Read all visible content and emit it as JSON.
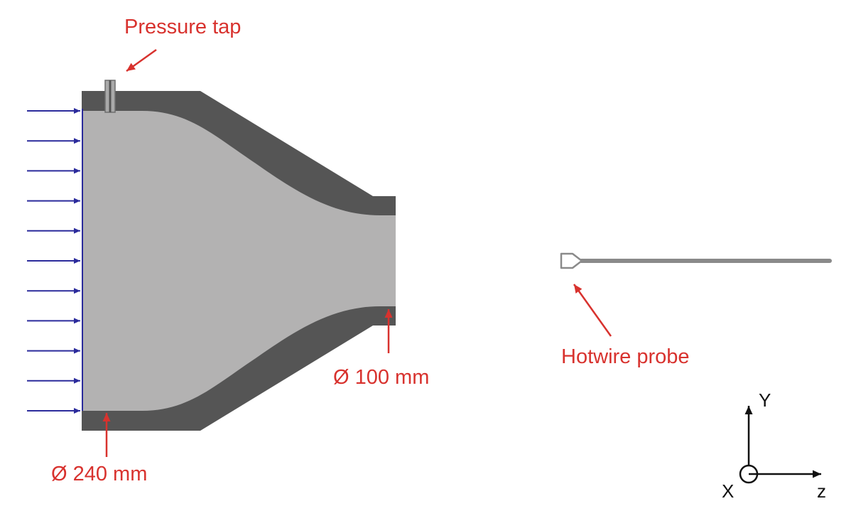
{
  "labels": {
    "pressure_tap": "Pressure tap",
    "hotwire_probe": "Hotwire probe",
    "inlet_diameter": "Ø 240 mm",
    "outlet_diameter": "Ø 100 mm"
  },
  "axes": {
    "y": "Y",
    "x": "X",
    "z": "z"
  },
  "colors": {
    "label_red": "#d8322e",
    "wall_dark": "#555555",
    "fluid_light": "#b3b2b2",
    "inflow_blue": "#2b2b9c",
    "probe_gray": "#8a8a8a",
    "axis_black": "#111111"
  },
  "inflow_arrow_count": 11
}
